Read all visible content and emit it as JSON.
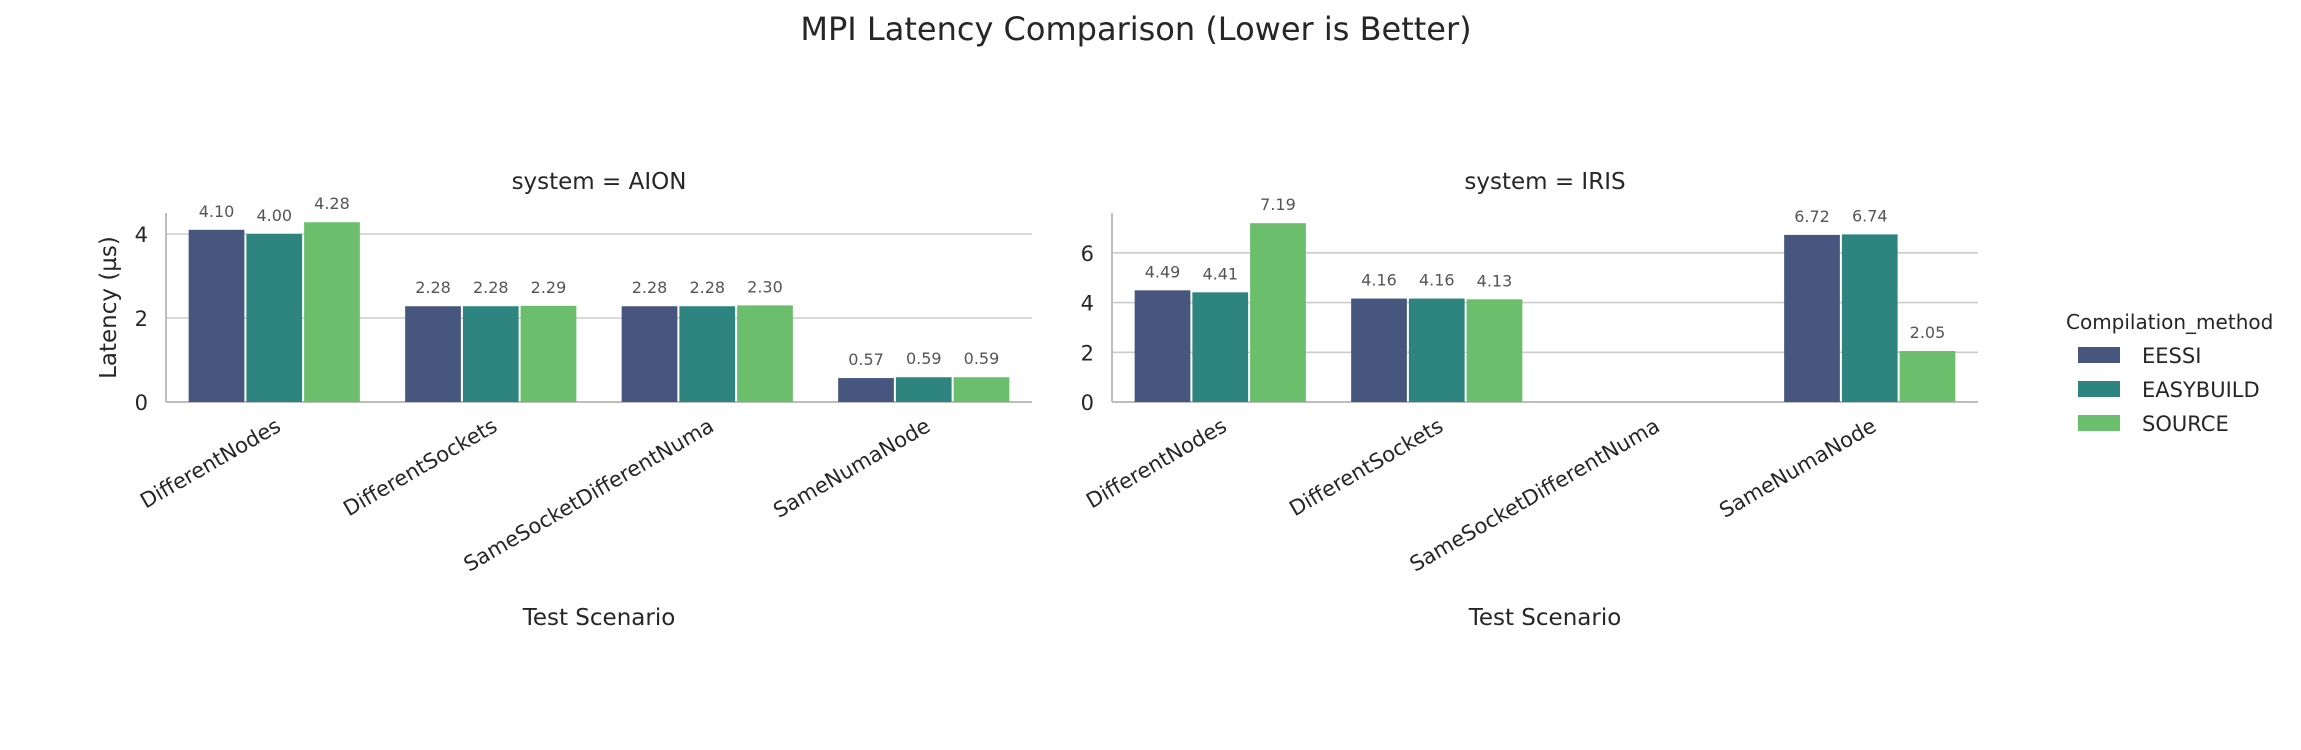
{
  "chart_data": {
    "type": "bar",
    "title": "MPI Latency Comparison (Lower is Better)",
    "ylabel": "Latency (µs)",
    "xlabel": "Test Scenario",
    "categories": [
      "DifferentNodes",
      "DifferentSockets",
      "SameSocketDifferentNuma",
      "SameNumaNode"
    ],
    "legend": {
      "title": "Compilation_method",
      "placement": "right",
      "entries": [
        "EESSI",
        "EASYBUILD",
        "SOURCE"
      ]
    },
    "colors": {
      "EESSI": "#46567f",
      "EASYBUILD": "#2e8580",
      "SOURCE": "#6abe6c"
    },
    "grid": true,
    "panels": [
      {
        "title": "system = AION",
        "ylim": [
          0,
          4.5
        ],
        "yticks": [
          "0",
          "2",
          "4"
        ],
        "series": [
          {
            "name": "EESSI",
            "values": [
              4.1,
              2.28,
              2.28,
              0.57
            ],
            "labels": [
              "4.10",
              "2.28",
              "2.28",
              "0.57"
            ]
          },
          {
            "name": "EASYBUILD",
            "values": [
              4.0,
              2.28,
              2.28,
              0.59
            ],
            "labels": [
              "4.00",
              "2.28",
              "2.28",
              "0.59"
            ]
          },
          {
            "name": "SOURCE",
            "values": [
              4.28,
              2.29,
              2.3,
              0.59
            ],
            "labels": [
              "4.28",
              "2.29",
              "2.30",
              "0.59"
            ]
          }
        ]
      },
      {
        "title": "system = IRIS",
        "ylim": [
          0,
          7.6
        ],
        "yticks": [
          "0",
          "2",
          "4",
          "6"
        ],
        "series": [
          {
            "name": "EESSI",
            "values": [
              4.49,
              4.16,
              null,
              6.72
            ],
            "labels": [
              "4.49",
              "4.16",
              "",
              "6.72"
            ]
          },
          {
            "name": "EASYBUILD",
            "values": [
              4.41,
              4.16,
              null,
              6.74
            ],
            "labels": [
              "4.41",
              "4.16",
              "",
              "6.74"
            ]
          },
          {
            "name": "SOURCE",
            "values": [
              7.19,
              4.13,
              null,
              2.05
            ],
            "labels": [
              "7.19",
              "4.13",
              "",
              "2.05"
            ]
          }
        ]
      }
    ]
  }
}
